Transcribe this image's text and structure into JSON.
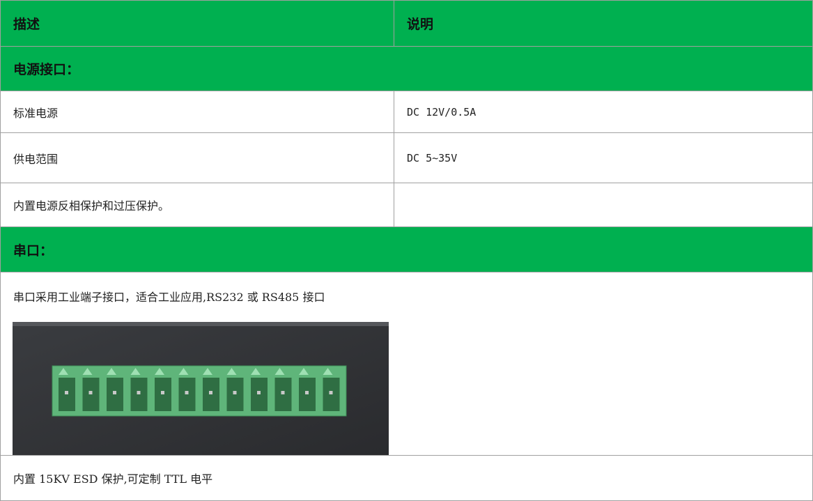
{
  "table": {
    "header": [
      "描述",
      "说明"
    ],
    "sections": [
      {
        "title": "电源接口：",
        "rows": [
          [
            "标准电源",
            "DC 12V/0.5A"
          ],
          [
            "供电范围",
            "DC 5~35V"
          ],
          [
            "内置电源反相保护和过压保护。"
          ]
        ]
      },
      {
        "title": "串口：",
        "paragraphs": [
          "串口采用工业端子接口，适合工业应用,RS232 或 RS485 接口",
          "内置 15KV ESD 保护,可定制 TTL 电平"
        ]
      }
    ]
  }
}
